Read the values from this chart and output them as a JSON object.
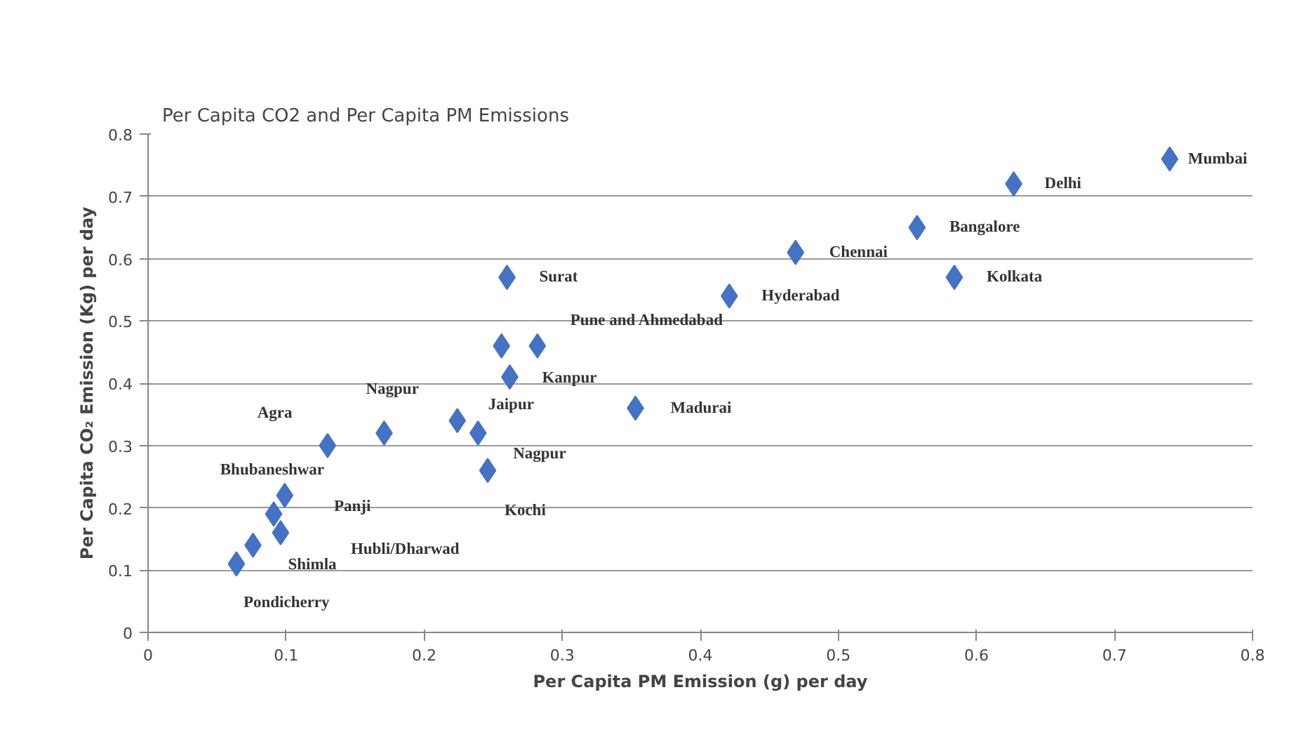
{
  "chart_data": {
    "type": "scatter",
    "title": "Per Capita CO2 and Per Capita PM Emissions",
    "xlabel": "Per Capita PM Emission (g) per day",
    "ylabel": "Per Capita CO₂ Emission (Kg) per day",
    "series": [
      {
        "color": "#4472c4",
        "x": [
          0.74,
          0.627,
          0.557,
          0.469,
          0.584,
          0.421,
          0.26,
          0.256,
          0.282,
          0.262,
          0.353,
          0.224,
          0.239,
          0.171,
          0.13,
          0.246,
          0.099,
          0.091,
          0.096,
          0.076,
          0.064
        ],
        "values": [
          0.76,
          0.72,
          0.65,
          0.61,
          0.57,
          0.54,
          0.57,
          0.46,
          0.46,
          0.41,
          0.36,
          0.34,
          0.32,
          0.32,
          0.3,
          0.26,
          0.22,
          0.19,
          0.16,
          0.14,
          0.11
        ]
      }
    ],
    "value_labels": [
      "Mumbai",
      "Delhi",
      "Bangalore",
      "Chennai",
      "Kolkata",
      "Hyderabad",
      "Surat",
      "Pune and Ahmedabad",
      null,
      "Kanpur",
      "Madurai",
      "Jaipur",
      "Nagpur",
      "Nagpur",
      "Agra",
      "Kochi",
      "Bhubaneshwar",
      "Panji",
      "Hubli/Dharwad",
      "Shimla",
      "Pondicherry"
    ],
    "marker": "diamond",
    "xlim": [
      0,
      0.8
    ],
    "ylim": [
      0,
      0.8
    ],
    "xticks": [
      0,
      0.1,
      0.2,
      0.3,
      0.4,
      0.5,
      0.6,
      0.7,
      0.8
    ],
    "yticks": [
      0,
      0.1,
      0.2,
      0.3,
      0.4,
      0.5,
      0.6,
      0.7,
      0.8
    ],
    "grid": "y"
  }
}
